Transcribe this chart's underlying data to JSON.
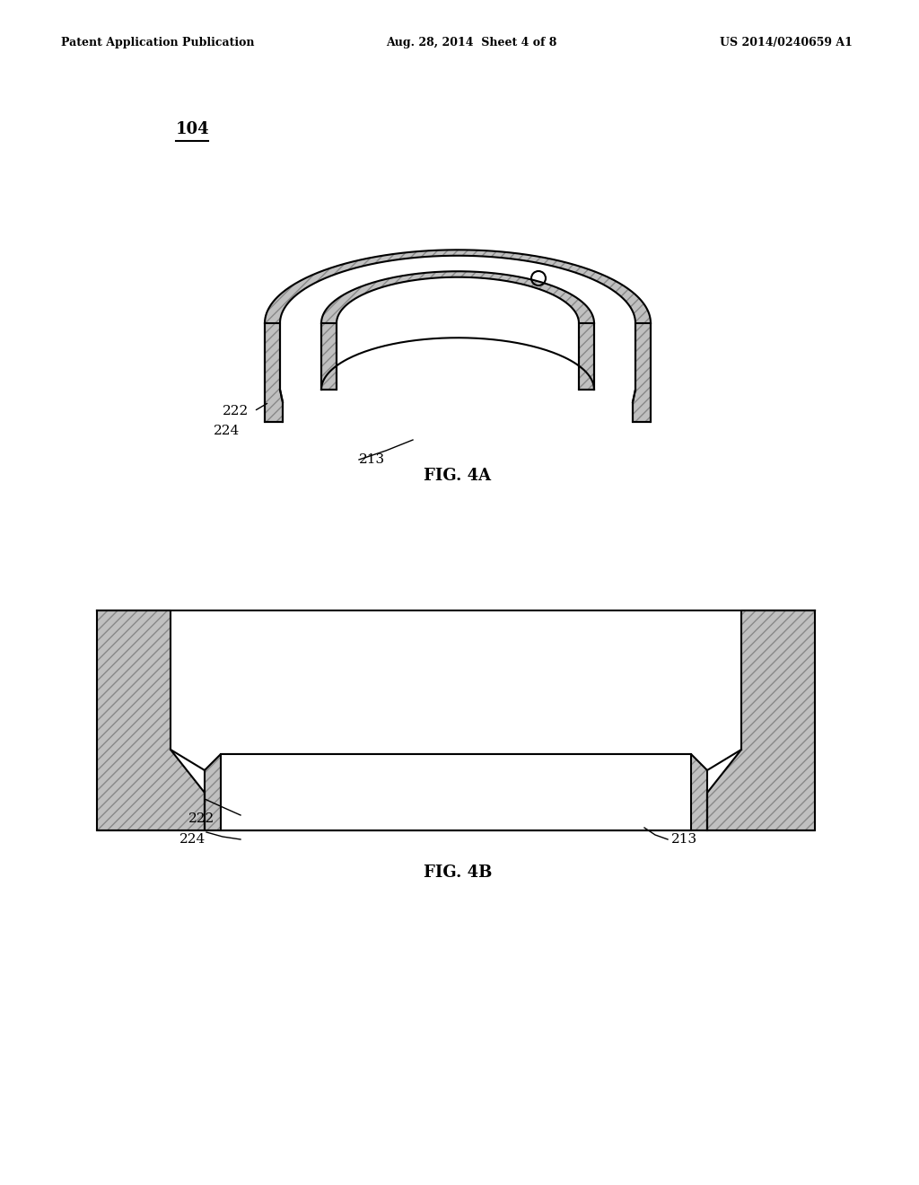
{
  "bg_color": "#ffffff",
  "header_left": "Patent Application Publication",
  "header_center": "Aug. 28, 2014  Sheet 4 of 8",
  "header_right": "US 2014/0240659 A1",
  "fig4a_caption": "FIG. 4A",
  "fig4b_caption": "FIG. 4B",
  "label_104": "104",
  "label_222_4a": "222",
  "label_224_4a": "224",
  "label_213_4a": "213",
  "label_222_4b": "222",
  "label_224_4b": "224",
  "label_213_4b": "213",
  "line_color": "#000000",
  "fill_color": "#c0c0c0",
  "lw": 1.5
}
